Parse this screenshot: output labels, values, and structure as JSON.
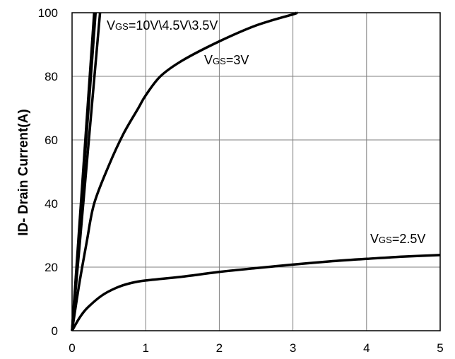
{
  "chart_data": {
    "type": "line",
    "title": "",
    "xlabel": "",
    "ylabel": "ID- Drain Current(A)",
    "xlim": [
      0,
      5
    ],
    "ylim": [
      0,
      100
    ],
    "x_ticks": [
      "0",
      "1",
      "2",
      "3",
      "4",
      "5"
    ],
    "y_ticks": [
      "0",
      "20",
      "40",
      "60",
      "80",
      "100"
    ],
    "grid": true,
    "series": [
      {
        "name": "VGS=10V",
        "x": [
          0,
          0.3
        ],
        "y": [
          0,
          100
        ]
      },
      {
        "name": "VGS=4.5V",
        "x": [
          0,
          0.32
        ],
        "y": [
          0,
          100
        ]
      },
      {
        "name": "VGS=3.5V",
        "x": [
          0,
          0.38
        ],
        "y": [
          0,
          100
        ]
      },
      {
        "name": "VGS=3V",
        "x": [
          0,
          0.1,
          0.2,
          0.3,
          0.5,
          0.7,
          0.9,
          1.0,
          1.2,
          1.5,
          2.0,
          2.5,
          3.0,
          3.05
        ],
        "y": [
          0,
          15,
          28,
          40,
          52,
          62,
          70,
          74,
          80,
          85,
          91,
          96,
          99.5,
          100
        ]
      },
      {
        "name": "VGS=2.5V",
        "x": [
          0,
          0.1,
          0.2,
          0.4,
          0.6,
          0.8,
          1.0,
          1.5,
          2.0,
          2.5,
          3.0,
          3.5,
          4.0,
          4.5,
          5.0
        ],
        "y": [
          0,
          4,
          7,
          11,
          13.5,
          15,
          15.8,
          17,
          18.5,
          19.7,
          20.8,
          21.8,
          22.6,
          23.3,
          23.8
        ]
      }
    ],
    "annotations": {
      "top": {
        "v": "V",
        "gs": "GS",
        "rest": "=10V\\4.5V\\3.5V"
      },
      "mid": {
        "v": "V",
        "gs": "GS",
        "rest": "=3V"
      },
      "low": {
        "v": "V",
        "gs": "GS",
        "rest": "=2.5V"
      }
    }
  }
}
